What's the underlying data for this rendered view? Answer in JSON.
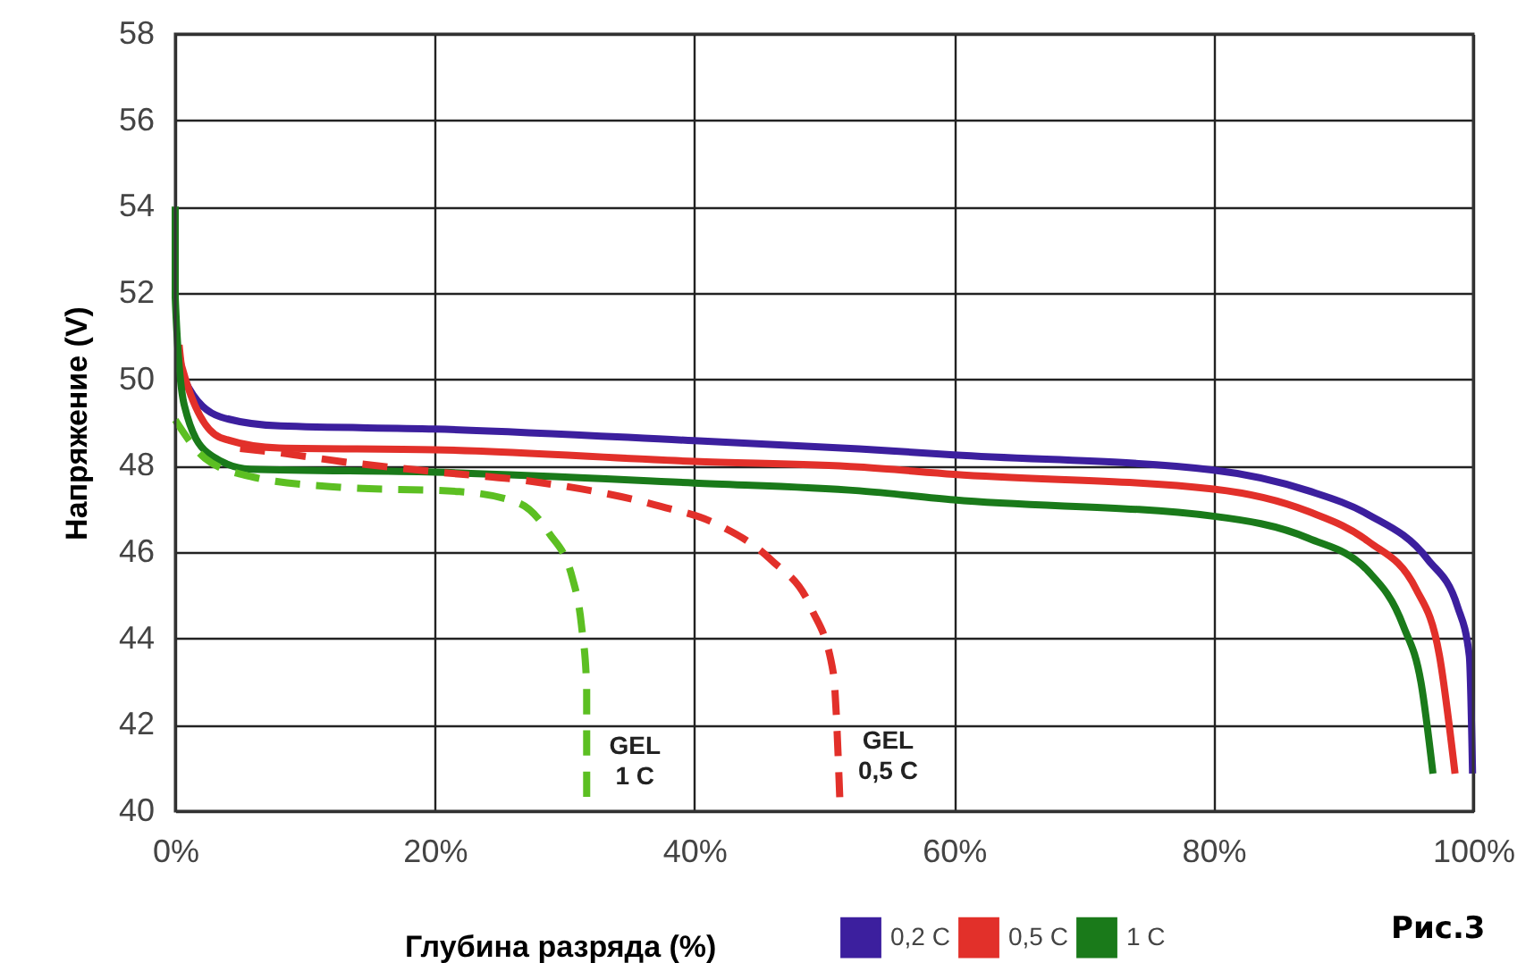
{
  "chart_data": {
    "type": "line",
    "xlabel": "Глубина разряда (%)",
    "ylabel": "Напряжение (V)",
    "xlim": [
      0,
      100
    ],
    "ylim": [
      40,
      58
    ],
    "xticks": [
      {
        "value": 0,
        "label": "0%"
      },
      {
        "value": 20,
        "label": "20%"
      },
      {
        "value": 40,
        "label": "40%"
      },
      {
        "value": 60,
        "label": "60%"
      },
      {
        "value": 80,
        "label": "80%"
      },
      {
        "value": 100,
        "label": "100%"
      }
    ],
    "yticks": [
      40,
      42,
      44,
      46,
      48,
      50,
      52,
      54,
      56,
      58
    ],
    "grid": true,
    "legend": "bottom",
    "marker": "none",
    "annotations": [
      "Рис.3"
    ],
    "series": [
      {
        "name": "0,2 C",
        "color": "#3c1f9e",
        "line_style": "solid",
        "x": [
          0.3,
          0.7,
          3.5,
          8.1,
          20,
          40,
          52.7,
          60,
          80,
          87.3,
          91.9,
          96.5,
          98.8,
          99.7,
          99.95
        ],
        "values": [
          50.6,
          50.0,
          49.13,
          48.92,
          48.85,
          48.58,
          48.39,
          48.25,
          47.9,
          47.42,
          46.87,
          45.83,
          44.73,
          43.6,
          40.87
        ]
      },
      {
        "name": "0,5 C",
        "color": "#e2302a",
        "line_style": "solid",
        "x": [
          0.3,
          0.5,
          3.5,
          8,
          20,
          40,
          52.7,
          60,
          80,
          87.3,
          91.9,
          95.6,
          97.4,
          98.6
        ],
        "values": [
          50.8,
          50.3,
          48.65,
          48.41,
          48.37,
          48.1,
          47.97,
          47.8,
          47.46,
          46.94,
          46.25,
          45.14,
          43.6,
          40.87
        ]
      },
      {
        "name": "1 C",
        "color": "#1a7a1a",
        "line_style": "solid",
        "x": [
          0,
          0,
          0.7,
          2.5,
          5.8,
          20,
          40,
          52.7,
          60,
          80,
          87.3,
          91.9,
          94.6,
          96,
          96.9
        ],
        "values": [
          54,
          51.9,
          49.4,
          48.3,
          47.92,
          47.85,
          47.6,
          47.42,
          47.21,
          46.83,
          46.32,
          45.56,
          44.3,
          42.94,
          40.87
        ]
      },
      {
        "name": "GEL 1 C",
        "color": "#5cbf22",
        "line_style": "dashed",
        "x": [
          0,
          2.3,
          5.8,
          12.7,
          21.9,
          26.5,
          28.8,
          30.6,
          31.3,
          31.7,
          31.7
        ],
        "values": [
          49.06,
          48.17,
          47.75,
          47.5,
          47.4,
          47.13,
          46.44,
          45.4,
          44.3,
          42.9,
          40.17
        ]
      },
      {
        "name": "GEL 0,5 C",
        "color": "#e2302a",
        "line_style": "dashed",
        "x": [
          5,
          8,
          12.7,
          20,
          27.4,
          37,
          41.7,
          45.9,
          49,
          50.7,
          51.2
        ],
        "values": [
          48.4,
          48.3,
          48.1,
          47.86,
          47.64,
          47.09,
          46.65,
          45.82,
          44.7,
          43.2,
          40.3
        ]
      }
    ]
  }
}
